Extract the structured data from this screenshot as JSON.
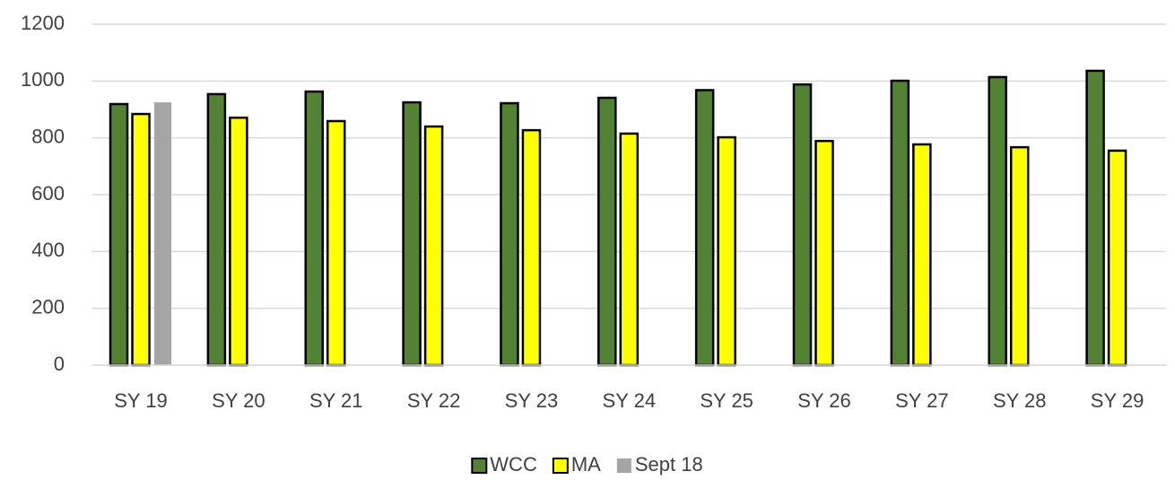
{
  "chart_data": {
    "type": "bar",
    "categories": [
      "SY 19",
      "SY 20",
      "SY 21",
      "SY 22",
      "SY 23",
      "SY 24",
      "SY 25",
      "SY 26",
      "SY 27",
      "SY 28",
      "SY 29"
    ],
    "series": [
      {
        "name": "WCC",
        "color": "#548235",
        "border": "#000000",
        "values": [
          919,
          954,
          963,
          925,
          922,
          941,
          968,
          988,
          1001,
          1014,
          1036
        ]
      },
      {
        "name": "MA",
        "color": "#ffff00",
        "border": "#000000",
        "values": [
          884,
          871,
          859,
          840,
          827,
          815,
          802,
          789,
          777,
          767,
          755
        ]
      },
      {
        "name": "Sept 18",
        "color": "#a5a5a5",
        "values": [
          925,
          null,
          null,
          null,
          null,
          null,
          null,
          null,
          null,
          null,
          null
        ]
      }
    ],
    "ylim": [
      0,
      1200
    ],
    "yticks": [
      0,
      200,
      400,
      600,
      800,
      1000,
      1200
    ],
    "grid": true,
    "legend": "bottom"
  }
}
